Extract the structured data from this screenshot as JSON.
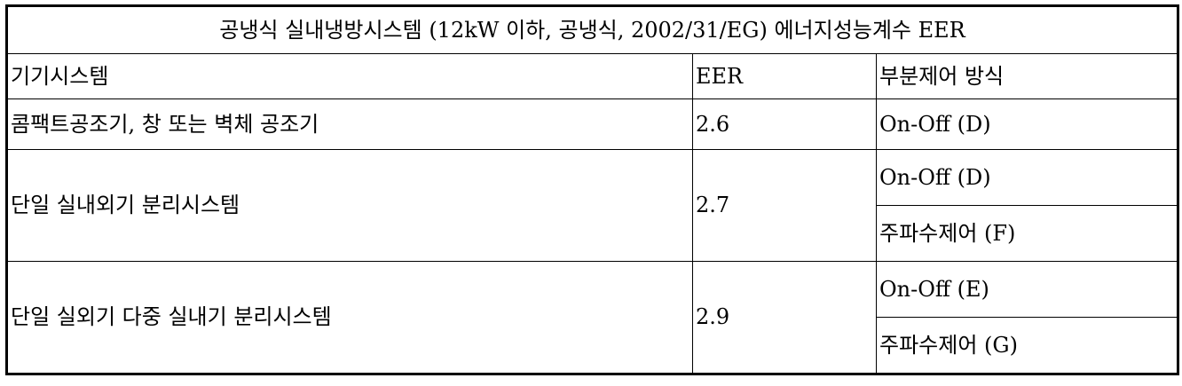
{
  "table": {
    "title": "공냉식 실내냉방시스템 (12kW 이하, 공냉식, 2002/31/EG) 에너지성능계수 EER",
    "headers": {
      "system": "기기시스템",
      "eer": "EER",
      "control": "부분제어 방식"
    },
    "rows": [
      {
        "system": "콤팩트공조기, 창 또는 벽체 공조기",
        "eer": "2.6",
        "controls": [
          "On-Off (D)"
        ]
      },
      {
        "system": "단일 실내외기 분리시스템",
        "eer": "2.7",
        "controls": [
          "On-Off (D)",
          "주파수제어 (F)"
        ]
      },
      {
        "system": "단일 실외기 다중 실내기 분리시스템",
        "eer": "2.9",
        "controls": [
          "On-Off (E)",
          "주파수제어 (G)"
        ]
      }
    ]
  }
}
